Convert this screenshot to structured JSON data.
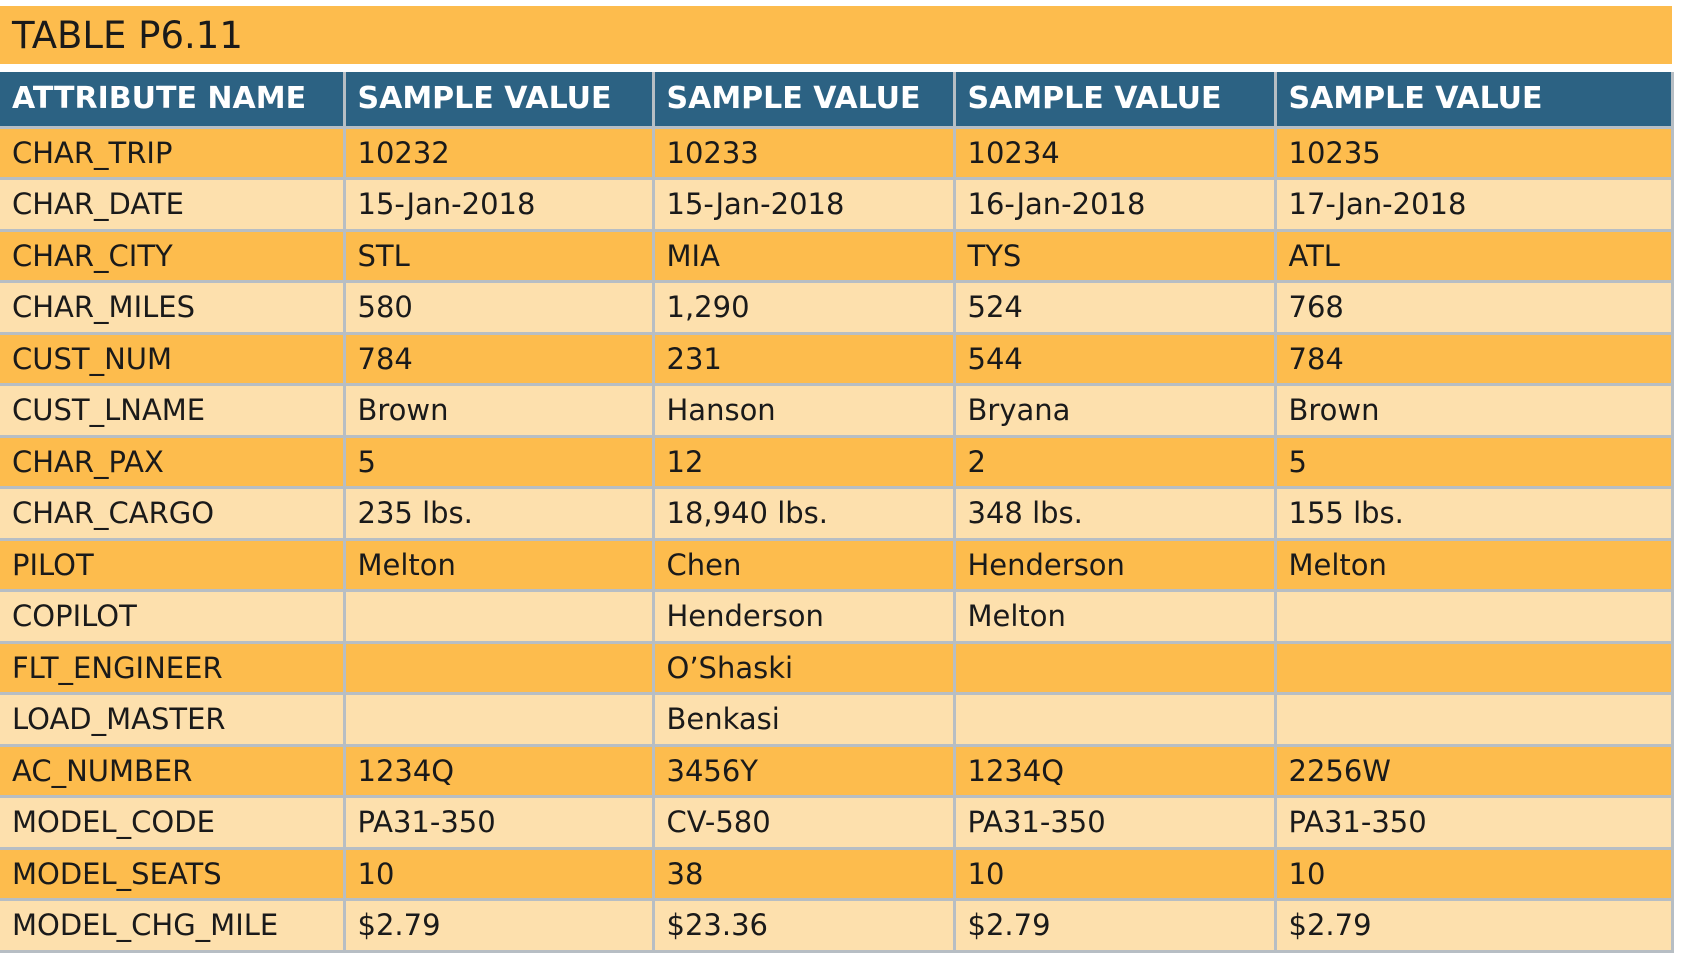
{
  "title": "TABLE P6.11",
  "colors": {
    "title_bg": "#fdbc4d",
    "header_bg": "#2c6283",
    "row_dark": "#fdbc4d",
    "row_light": "#fde0ad"
  },
  "table": {
    "headers": [
      "ATTRIBUTE NAME",
      "SAMPLE VALUE",
      "SAMPLE VALUE",
      "SAMPLE VALUE",
      "SAMPLE VALUE"
    ],
    "rows": [
      [
        "CHAR_TRIP",
        "10232",
        "10233",
        "10234",
        "10235"
      ],
      [
        "CHAR_DATE",
        "15-Jan-2018",
        "15-Jan-2018",
        "16-Jan-2018",
        "17-Jan-2018"
      ],
      [
        "CHAR_CITY",
        "STL",
        "MIA",
        "TYS",
        "ATL"
      ],
      [
        "CHAR_MILES",
        "580",
        "1,290",
        "524",
        "768"
      ],
      [
        "CUST_NUM",
        "784",
        "231",
        "544",
        "784"
      ],
      [
        "CUST_LNAME",
        "Brown",
        "Hanson",
        "Bryana",
        "Brown"
      ],
      [
        "CHAR_PAX",
        "5",
        "12",
        "2",
        "5"
      ],
      [
        "CHAR_CARGO",
        "235 lbs.",
        "18,940 lbs.",
        "348 lbs.",
        "155 lbs."
      ],
      [
        "PILOT",
        "Melton",
        "Chen",
        "Henderson",
        "Melton"
      ],
      [
        "COPILOT",
        "",
        "Henderson",
        "Melton",
        ""
      ],
      [
        "FLT_ENGINEER",
        "",
        "O’Shaski",
        "",
        ""
      ],
      [
        "LOAD_MASTER",
        "",
        "Benkasi",
        "",
        ""
      ],
      [
        "AC_NUMBER",
        "1234Q",
        "3456Y",
        "1234Q",
        "2256W"
      ],
      [
        "MODEL_CODE",
        "PA31-350",
        "CV-580",
        "PA31-350",
        "PA31-350"
      ],
      [
        "MODEL_SEATS",
        "10",
        "38",
        "10",
        "10"
      ],
      [
        "MODEL_CHG_MILE",
        "$2.79",
        "$23.36",
        "$2.79",
        "$2.79"
      ]
    ]
  }
}
